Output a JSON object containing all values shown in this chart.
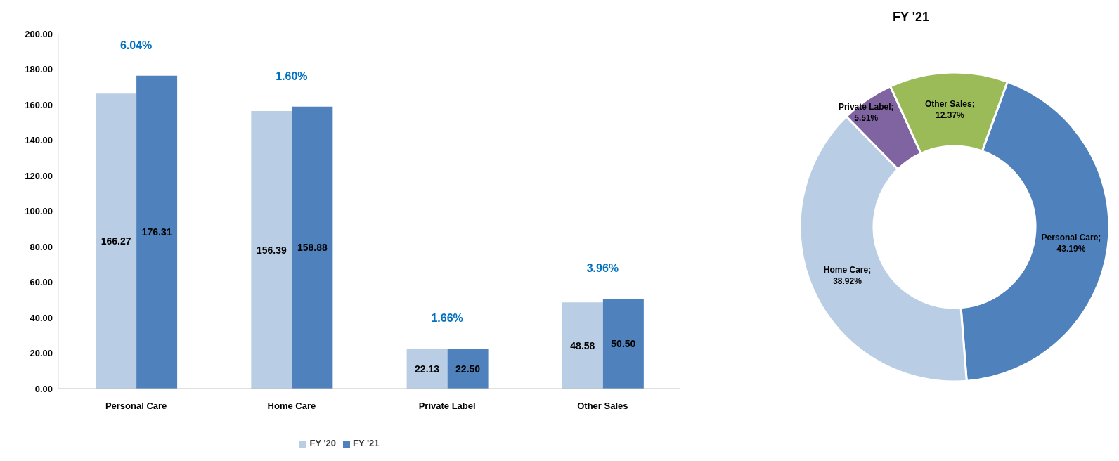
{
  "chart_data": [
    {
      "type": "bar",
      "categories": [
        "Personal Care",
        "Home Care",
        "Private Label",
        "Other Sales"
      ],
      "series": [
        {
          "name": "FY '20",
          "color": "#b9cde5",
          "values": [
            166.27,
            156.39,
            22.13,
            48.58
          ],
          "value_labels": [
            "166.27",
            "156.39",
            "22.13",
            "48.58"
          ]
        },
        {
          "name": "FY '21",
          "color": "#4f81bd",
          "values": [
            176.31,
            158.88,
            22.5,
            50.5
          ],
          "value_labels": [
            "176.31",
            "158.88",
            "22.50",
            "50.50"
          ]
        }
      ],
      "ylim": [
        0,
        200
      ],
      "yticks": [
        {
          "value": 0,
          "label": "0.00"
        },
        {
          "value": 20,
          "label": "20.00"
        },
        {
          "value": 40,
          "label": "40.00"
        },
        {
          "value": 60,
          "label": "60.00"
        },
        {
          "value": 80,
          "label": "80.00"
        },
        {
          "value": 100,
          "label": "100.00"
        },
        {
          "value": 120,
          "label": "120.00"
        },
        {
          "value": 140,
          "label": "140.00"
        },
        {
          "value": 160,
          "label": "160.00"
        },
        {
          "value": 180,
          "label": "180.00"
        },
        {
          "value": 200,
          "label": "200.00"
        }
      ],
      "annotations": [
        "6.04%",
        "1.60%",
        "1.66%",
        "3.96%"
      ],
      "grid": false,
      "legend": "bottom"
    },
    {
      "type": "donut",
      "title": "FY '21",
      "values": [
        43.19,
        38.92,
        5.51,
        12.37
      ],
      "value_labels": [
        "Personal Care; 43.19%",
        "Home Care; 38.92%",
        "Private Label; 5.51%",
        "Other Sales; 12.37%"
      ],
      "colors": [
        "#4f81bd",
        "#b9cde5",
        "#8064a2",
        "#9bbb59"
      ]
    }
  ]
}
